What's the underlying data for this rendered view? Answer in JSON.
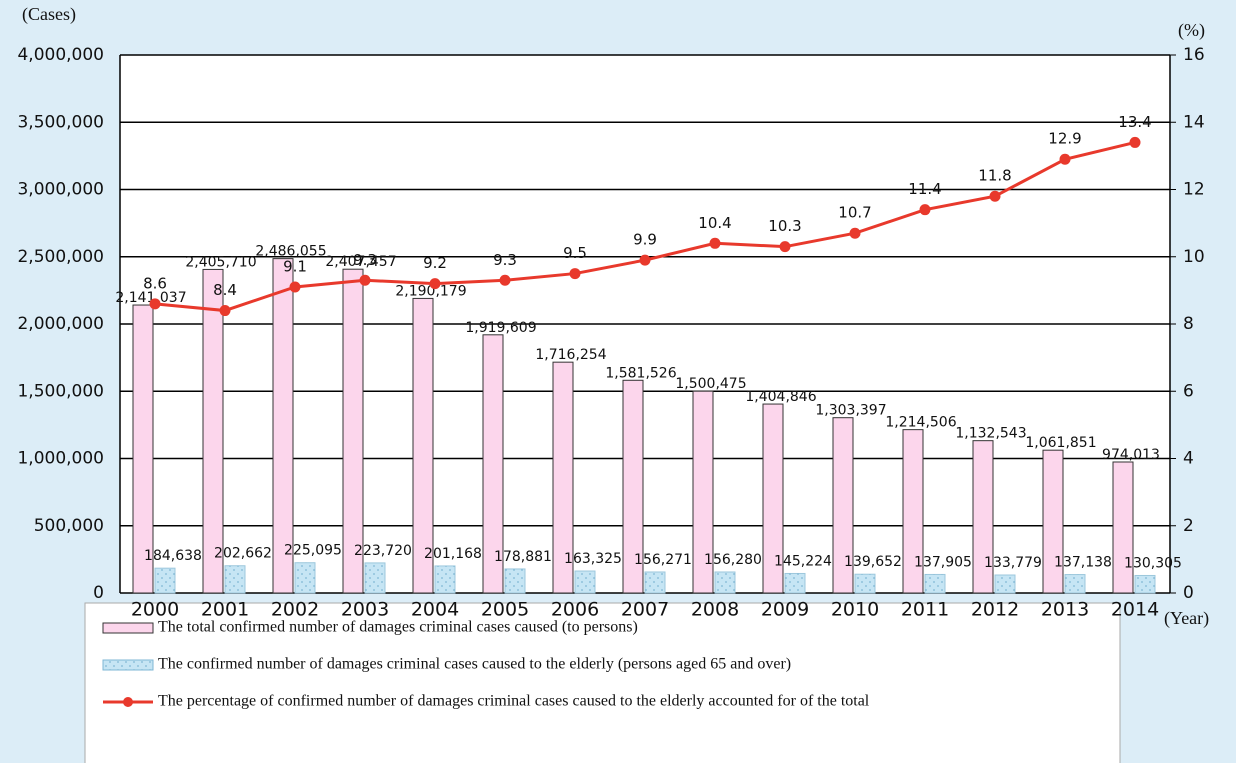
{
  "chart_data": {
    "type": "bar",
    "y_label": "(Cases)",
    "y2_label": "(%)",
    "x_label": "(Year)",
    "categories": [
      "2000",
      "2001",
      "2002",
      "2003",
      "2004",
      "2005",
      "2006",
      "2007",
      "2008",
      "2009",
      "2010",
      "2011",
      "2012",
      "2013",
      "2014"
    ],
    "series": [
      {
        "name": "The total confirmed number of damages criminal cases caused (to persons)",
        "type": "bar",
        "color": "#fcd6ec",
        "values": [
          2141037,
          2405710,
          2486055,
          2407457,
          2190179,
          1919609,
          1716254,
          1581526,
          1500475,
          1404846,
          1303397,
          1214506,
          1132543,
          1061851,
          974013
        ],
        "value_labels": [
          "2,141,037",
          "2,405,710",
          "2,486,055",
          "2,407,457",
          "2,190,179",
          "1,919,609",
          "1,716,254",
          "1,581,526",
          "1,500,475",
          "1,404,846",
          "1,303,397",
          "1,214,506",
          "1,132,543",
          "1,061,851",
          "974,013"
        ]
      },
      {
        "name": "The confirmed number of damages criminal cases caused to the elderly (persons aged 65 and over)",
        "type": "bar",
        "color": "#c6e5f4",
        "values": [
          184638,
          202662,
          225095,
          223720,
          201168,
          178881,
          163325,
          156271,
          156280,
          145224,
          139652,
          137905,
          133779,
          137138,
          130305
        ],
        "value_labels": [
          "184,638",
          "202,662",
          "225,095",
          "223,720",
          "201,168",
          "178,881",
          "163,325",
          "156,271",
          "156,280",
          "145,224",
          "139,652",
          "137,905",
          "133,779",
          "137,138",
          "130,305"
        ]
      },
      {
        "name": "The percentage of confirmed number of damages criminal cases caused to the elderly accounted for of the total",
        "type": "line",
        "axis": "y2",
        "color": "#e8392c",
        "values": [
          8.6,
          8.4,
          9.1,
          9.3,
          9.2,
          9.3,
          9.5,
          9.9,
          10.4,
          10.3,
          10.7,
          11.4,
          11.8,
          12.9,
          13.4
        ]
      }
    ],
    "ylim": [
      0,
      4000000
    ],
    "yticks": [
      0,
      {
        "value": 500000,
        "label": "500,000"
      },
      {
        "value": 1000000,
        "label": "1,000,000"
      },
      {
        "value": 1500000,
        "label": "1,500,000"
      },
      {
        "value": 2000000,
        "label": "2,000,000"
      },
      {
        "value": 2500000,
        "label": "2,500,000"
      },
      {
        "value": 3000000,
        "label": "3,000,000"
      },
      {
        "value": 3500000,
        "label": "3,500,000"
      },
      {
        "value": 4000000,
        "label": "4,000,000"
      }
    ],
    "y2lim": [
      0,
      16
    ],
    "y2ticks": [
      0,
      2,
      4,
      6,
      8,
      10,
      12,
      14,
      16
    ],
    "grid": true
  }
}
